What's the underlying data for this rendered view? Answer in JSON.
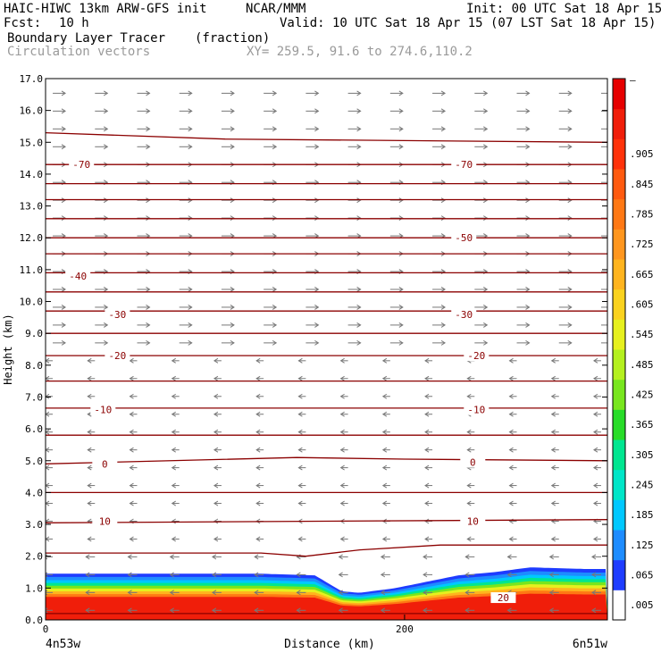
{
  "header": {
    "model": "HAIC-HIWC 13km ARW-GFS init",
    "org": "NCAR/MMM",
    "init": "Init: 00 UTC Sat 18 Apr 15",
    "fcst_label": "Fcst:",
    "fcst_value": "10 h",
    "valid": "Valid: 10 UTC Sat 18 Apr 15 (07 LST Sat 18 Apr 15)",
    "field": "Boundary Layer Tracer",
    "field_units": "(fraction)",
    "vectors": "Circulation vectors",
    "xy": "XY= 259.5, 91.6 to 274.6,110.2"
  },
  "axes": {
    "ylabel": "Height (km)",
    "xlabel": "Distance (km)",
    "left_endpoint": "4n53w",
    "right_endpoint": "6n51w"
  },
  "colors": {
    "contour": "#8b0000",
    "vector": "#777777"
  },
  "chart_data": {
    "type": "heatmap",
    "title": "Boundary Layer Tracer",
    "xlabel": "Distance (km)",
    "ylabel": "Height (km)",
    "xlim": [
      0,
      313
    ],
    "ylim": [
      0,
      17
    ],
    "x_ticks": [
      0,
      200
    ],
    "x_tick_labels": [
      "0",
      "200"
    ],
    "y_ticks": [
      0,
      1,
      2,
      3,
      4,
      5,
      6,
      7,
      8,
      9,
      10,
      11,
      12,
      13,
      14,
      15,
      16,
      17
    ],
    "y_tick_labels": [
      "0.0",
      "1.0",
      "2.0",
      "3.0",
      "4.0",
      "5.0",
      "6.0",
      "7.0",
      "8.0",
      "9.0",
      "10.0",
      "11.0",
      "12.0",
      "13.0",
      "14.0",
      "15.0",
      "16.0",
      "17.0"
    ],
    "colorbar": {
      "labels": [
        ".005",
        ".065",
        ".125",
        ".185",
        ".245",
        ".305",
        ".365",
        ".425",
        ".485",
        ".545",
        ".605",
        ".665",
        ".725",
        ".785",
        ".845",
        ".905",
        "–"
      ],
      "colors": [
        "#ffffff",
        "#1e3cff",
        "#1e8cff",
        "#00c8ff",
        "#00e6c8",
        "#00e690",
        "#28dc28",
        "#78e61e",
        "#b4f01e",
        "#e6f01e",
        "#fad21e",
        "#ffb41e",
        "#ff961e",
        "#ff7814",
        "#ff5a0f",
        "#ff320a",
        "#f01e0a",
        "#e60000"
      ]
    },
    "boundary_layer_top": {
      "x": [
        0,
        60,
        120,
        150,
        165,
        175,
        195,
        230,
        250,
        270,
        300,
        313
      ],
      "height_km": [
        1.45,
        1.45,
        1.45,
        1.4,
        0.9,
        0.85,
        1.0,
        1.4,
        1.5,
        1.65,
        1.6,
        1.6
      ]
    },
    "temperature_contours": [
      {
        "label": "-70",
        "label_positions": [
          [
            20,
            14.3
          ],
          [
            233,
            14.3
          ]
        ]
      },
      {
        "label": "-50",
        "label_positions": [
          [
            233,
            12.0
          ]
        ]
      },
      {
        "label": "-40",
        "label_positions": [
          [
            18,
            10.8
          ]
        ]
      },
      {
        "label": "-30",
        "label_positions": [
          [
            40,
            9.6
          ],
          [
            233,
            9.6
          ]
        ]
      },
      {
        "label": "-20",
        "label_positions": [
          [
            40,
            8.3
          ],
          [
            240,
            8.3
          ]
        ]
      },
      {
        "label": "-10",
        "label_positions": [
          [
            32,
            6.6
          ],
          [
            240,
            6.6
          ]
        ]
      },
      {
        "label": "0",
        "label_positions": [
          [
            33,
            4.9
          ],
          [
            238,
            4.95
          ]
        ]
      },
      {
        "label": "10",
        "label_positions": [
          [
            33,
            3.1
          ],
          [
            238,
            3.1
          ]
        ]
      },
      {
        "label": "20",
        "label_positions": [
          [
            255,
            0.7
          ]
        ]
      }
    ],
    "contour_levels_km": [
      {
        "x": [
          0,
          313
        ],
        "y": [
          0.2,
          0.2
        ]
      },
      {
        "x": [
          0,
          120,
          145,
          175,
          220,
          313
        ],
        "y": [
          2.1,
          2.1,
          2.0,
          2.2,
          2.35,
          2.35
        ]
      },
      {
        "x": [
          0,
          313
        ],
        "y": [
          3.05,
          3.15
        ]
      },
      {
        "x": [
          0,
          313
        ],
        "y": [
          4.0,
          4.0
        ]
      },
      {
        "x": [
          0,
          140,
          200,
          313
        ],
        "y": [
          4.9,
          5.1,
          5.05,
          5.0
        ]
      },
      {
        "x": [
          0,
          313
        ],
        "y": [
          5.8,
          5.8
        ]
      },
      {
        "x": [
          0,
          313
        ],
        "y": [
          6.65,
          6.65
        ]
      },
      {
        "x": [
          0,
          313
        ],
        "y": [
          7.5,
          7.5
        ]
      },
      {
        "x": [
          0,
          313
        ],
        "y": [
          8.3,
          8.3
        ]
      },
      {
        "x": [
          0,
          313
        ],
        "y": [
          9.0,
          9.0
        ]
      },
      {
        "x": [
          0,
          313
        ],
        "y": [
          9.7,
          9.7
        ]
      },
      {
        "x": [
          0,
          313
        ],
        "y": [
          10.3,
          10.3
        ]
      },
      {
        "x": [
          0,
          313
        ],
        "y": [
          10.9,
          10.9
        ]
      },
      {
        "x": [
          0,
          313
        ],
        "y": [
          11.5,
          11.5
        ]
      },
      {
        "x": [
          0,
          313
        ],
        "y": [
          12.0,
          12.0
        ]
      },
      {
        "x": [
          0,
          313
        ],
        "y": [
          12.6,
          12.6
        ]
      },
      {
        "x": [
          0,
          313
        ],
        "y": [
          13.2,
          13.2
        ]
      },
      {
        "x": [
          0,
          313
        ],
        "y": [
          13.7,
          13.7
        ]
      },
      {
        "x": [
          0,
          313
        ],
        "y": [
          14.3,
          14.3
        ]
      },
      {
        "x": [
          0,
          100,
          313
        ],
        "y": [
          15.3,
          15.1,
          15.0
        ]
      }
    ],
    "wind_vectors": {
      "upper": "eastward",
      "lower": "westward",
      "reversal_height_km": 8.3
    }
  }
}
